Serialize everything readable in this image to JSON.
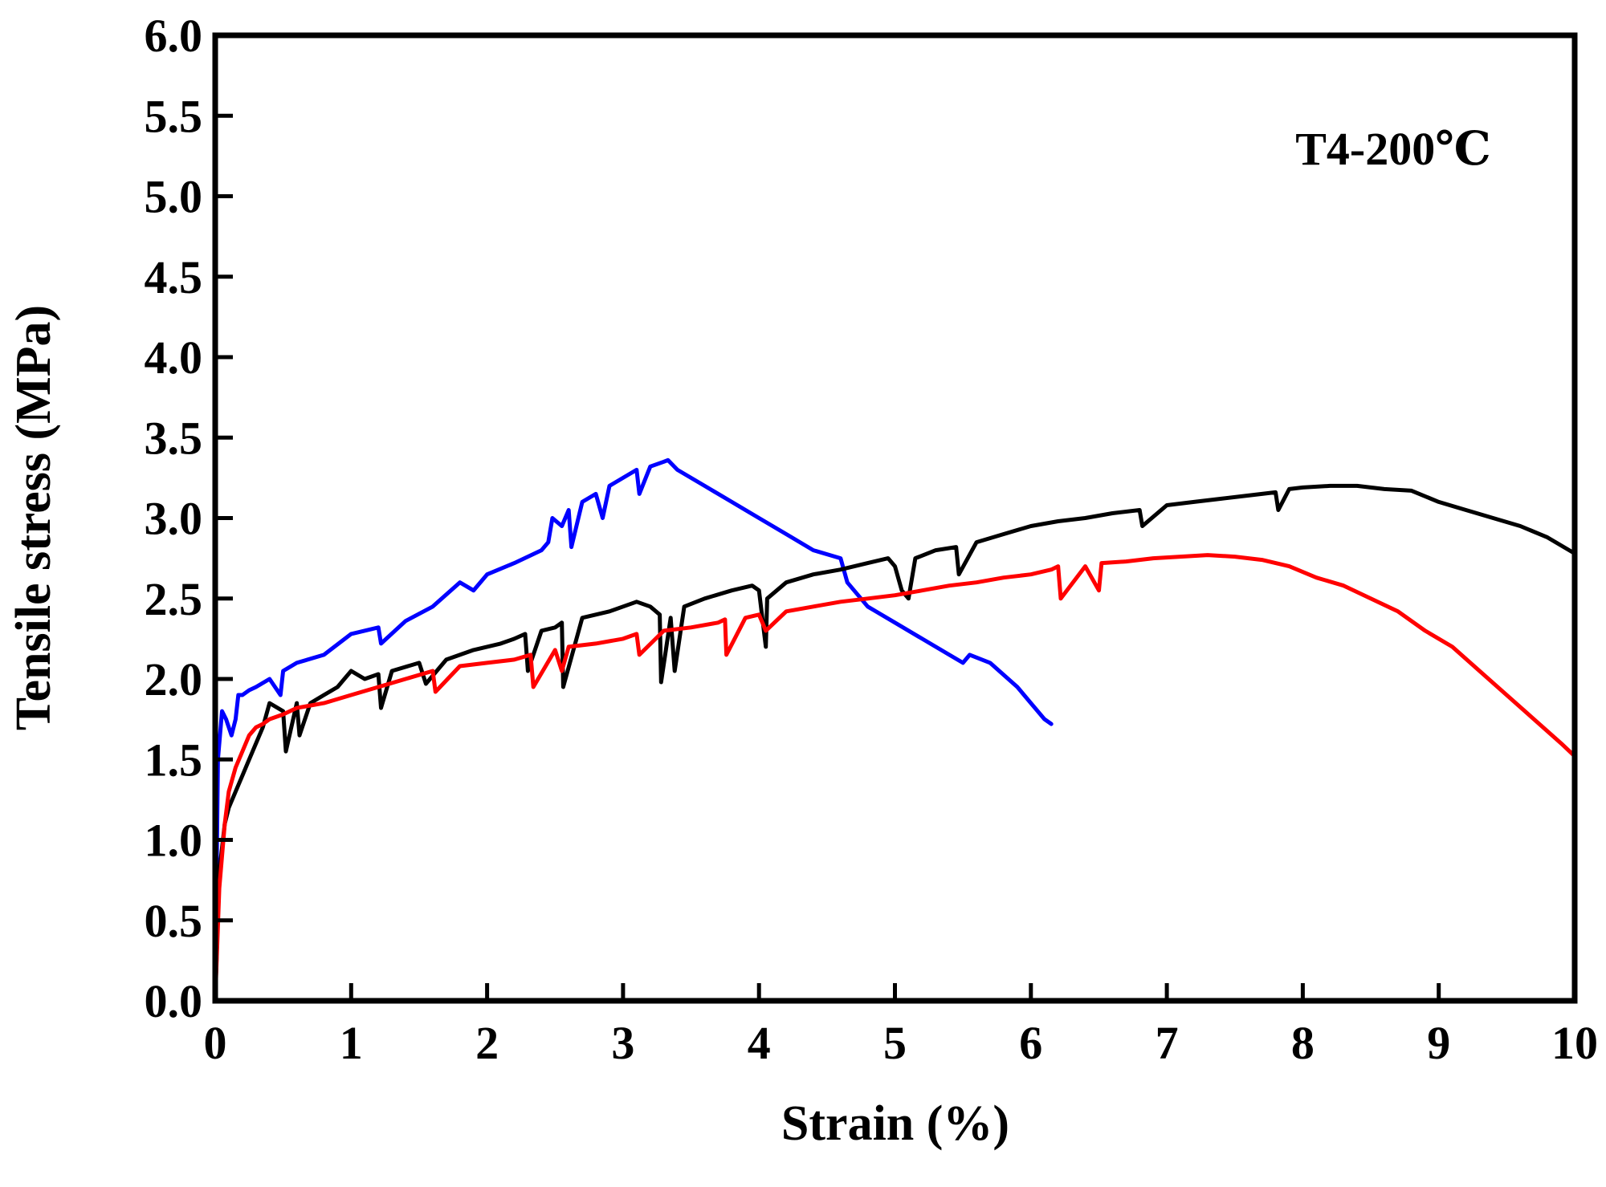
{
  "chart_data": {
    "type": "line",
    "title": "",
    "annotation": "T4-200℃",
    "xlabel": "Strain (%)",
    "ylabel": "Tensile stress (MPa)",
    "xlim": [
      0,
      10
    ],
    "ylim": [
      0,
      6
    ],
    "x_ticks": [
      "0",
      "1",
      "2",
      "3",
      "4",
      "5",
      "6",
      "7",
      "8",
      "9",
      "10"
    ],
    "y_ticks": [
      "0.0",
      "0.5",
      "1.0",
      "1.5",
      "2.0",
      "2.5",
      "3.0",
      "3.5",
      "4.0",
      "4.5",
      "5.0",
      "5.5",
      "6.0"
    ],
    "grid": false,
    "legend": "none",
    "series": [
      {
        "name": "blue",
        "color": "#0000ff",
        "x": [
          0,
          0.02,
          0.05,
          0.08,
          0.12,
          0.15,
          0.17,
          0.2,
          0.25,
          0.3,
          0.4,
          0.48,
          0.5,
          0.6,
          0.8,
          1.0,
          1.2,
          1.22,
          1.4,
          1.6,
          1.8,
          1.9,
          2.0,
          2.2,
          2.4,
          2.45,
          2.48,
          2.55,
          2.6,
          2.62,
          2.7,
          2.8,
          2.85,
          2.9,
          3.0,
          3.1,
          3.12,
          3.2,
          3.3,
          3.33,
          3.4,
          3.6,
          3.8,
          4.0,
          4.2,
          4.4,
          4.6,
          4.65,
          4.8,
          5.0,
          5.2,
          5.4,
          5.5,
          5.55,
          5.7,
          5.9,
          6.0,
          6.1,
          6.15
        ],
        "y": [
          0,
          1.5,
          1.8,
          1.75,
          1.65,
          1.75,
          1.9,
          1.9,
          1.93,
          1.95,
          2.0,
          1.9,
          2.05,
          2.1,
          2.15,
          2.28,
          2.32,
          2.22,
          2.36,
          2.45,
          2.6,
          2.55,
          2.65,
          2.72,
          2.8,
          2.85,
          3.0,
          2.95,
          3.05,
          2.82,
          3.1,
          3.15,
          3.0,
          3.2,
          3.25,
          3.3,
          3.15,
          3.32,
          3.35,
          3.36,
          3.3,
          3.2,
          3.1,
          3.0,
          2.9,
          2.8,
          2.75,
          2.6,
          2.45,
          2.35,
          2.25,
          2.15,
          2.1,
          2.15,
          2.1,
          1.95,
          1.85,
          1.75,
          1.72
        ]
      },
      {
        "name": "black",
        "color": "#000000",
        "x": [
          0,
          0.03,
          0.07,
          0.1,
          0.15,
          0.2,
          0.25,
          0.35,
          0.4,
          0.5,
          0.52,
          0.6,
          0.62,
          0.7,
          0.8,
          0.9,
          0.95,
          1.0,
          1.1,
          1.2,
          1.22,
          1.3,
          1.5,
          1.55,
          1.7,
          1.9,
          2.0,
          2.1,
          2.2,
          2.28,
          2.3,
          2.4,
          2.5,
          2.55,
          2.56,
          2.7,
          2.8,
          2.9,
          3.0,
          3.1,
          3.2,
          3.27,
          3.28,
          3.35,
          3.38,
          3.45,
          3.6,
          3.8,
          3.95,
          4.0,
          4.05,
          4.06,
          4.2,
          4.4,
          4.6,
          4.8,
          4.95,
          5.0,
          5.05,
          5.1,
          5.15,
          5.3,
          5.45,
          5.47,
          5.6,
          5.8,
          6.0,
          6.2,
          6.4,
          6.6,
          6.8,
          6.82,
          7.0,
          7.2,
          7.4,
          7.6,
          7.8,
          7.82,
          7.9,
          8.0,
          8.2,
          8.4,
          8.6,
          8.8,
          9.0,
          9.2,
          9.4,
          9.6,
          9.8,
          10.0
        ],
        "y": [
          0,
          0.8,
          1.1,
          1.2,
          1.3,
          1.4,
          1.5,
          1.7,
          1.85,
          1.8,
          1.55,
          1.85,
          1.65,
          1.85,
          1.9,
          1.95,
          2.0,
          2.05,
          2.0,
          2.03,
          1.82,
          2.05,
          2.1,
          1.97,
          2.12,
          2.18,
          2.2,
          2.22,
          2.25,
          2.28,
          2.05,
          2.3,
          2.32,
          2.35,
          1.95,
          2.38,
          2.4,
          2.42,
          2.45,
          2.48,
          2.45,
          2.4,
          1.98,
          2.38,
          2.05,
          2.45,
          2.5,
          2.55,
          2.58,
          2.55,
          2.2,
          2.5,
          2.6,
          2.65,
          2.68,
          2.72,
          2.75,
          2.7,
          2.55,
          2.5,
          2.75,
          2.8,
          2.82,
          2.65,
          2.85,
          2.9,
          2.95,
          2.98,
          3.0,
          3.03,
          3.05,
          2.95,
          3.08,
          3.1,
          3.12,
          3.14,
          3.16,
          3.05,
          3.18,
          3.19,
          3.2,
          3.2,
          3.18,
          3.17,
          3.1,
          3.05,
          3.0,
          2.95,
          2.88,
          2.78
        ]
      },
      {
        "name": "red",
        "color": "#ff0000",
        "x": [
          0,
          0.03,
          0.07,
          0.1,
          0.15,
          0.2,
          0.25,
          0.3,
          0.35,
          0.4,
          0.5,
          0.6,
          0.8,
          1.0,
          1.2,
          1.4,
          1.6,
          1.62,
          1.8,
          2.0,
          2.2,
          2.32,
          2.34,
          2.5,
          2.55,
          2.6,
          2.8,
          3.0,
          3.1,
          3.12,
          3.3,
          3.5,
          3.7,
          3.75,
          3.76,
          3.9,
          4.0,
          4.05,
          4.2,
          4.4,
          4.6,
          4.8,
          5.0,
          5.2,
          5.4,
          5.6,
          5.8,
          6.0,
          6.15,
          6.2,
          6.22,
          6.4,
          6.5,
          6.52,
          6.7,
          6.9,
          7.1,
          7.3,
          7.5,
          7.7,
          7.9,
          8.1,
          8.3,
          8.5,
          8.7,
          8.9,
          9.1,
          9.3,
          9.5,
          9.7,
          9.9,
          10.0
        ],
        "y": [
          0,
          0.7,
          1.1,
          1.3,
          1.45,
          1.55,
          1.65,
          1.7,
          1.72,
          1.75,
          1.78,
          1.82,
          1.85,
          1.9,
          1.95,
          2.0,
          2.05,
          1.92,
          2.08,
          2.1,
          2.12,
          2.15,
          1.95,
          2.18,
          2.05,
          2.2,
          2.22,
          2.25,
          2.28,
          2.15,
          2.3,
          2.32,
          2.35,
          2.37,
          2.15,
          2.38,
          2.4,
          2.3,
          2.42,
          2.45,
          2.48,
          2.5,
          2.52,
          2.55,
          2.58,
          2.6,
          2.63,
          2.65,
          2.68,
          2.7,
          2.5,
          2.7,
          2.55,
          2.72,
          2.73,
          2.75,
          2.76,
          2.77,
          2.76,
          2.74,
          2.7,
          2.63,
          2.58,
          2.5,
          2.42,
          2.3,
          2.2,
          2.05,
          1.9,
          1.75,
          1.6,
          1.52
        ]
      }
    ]
  }
}
